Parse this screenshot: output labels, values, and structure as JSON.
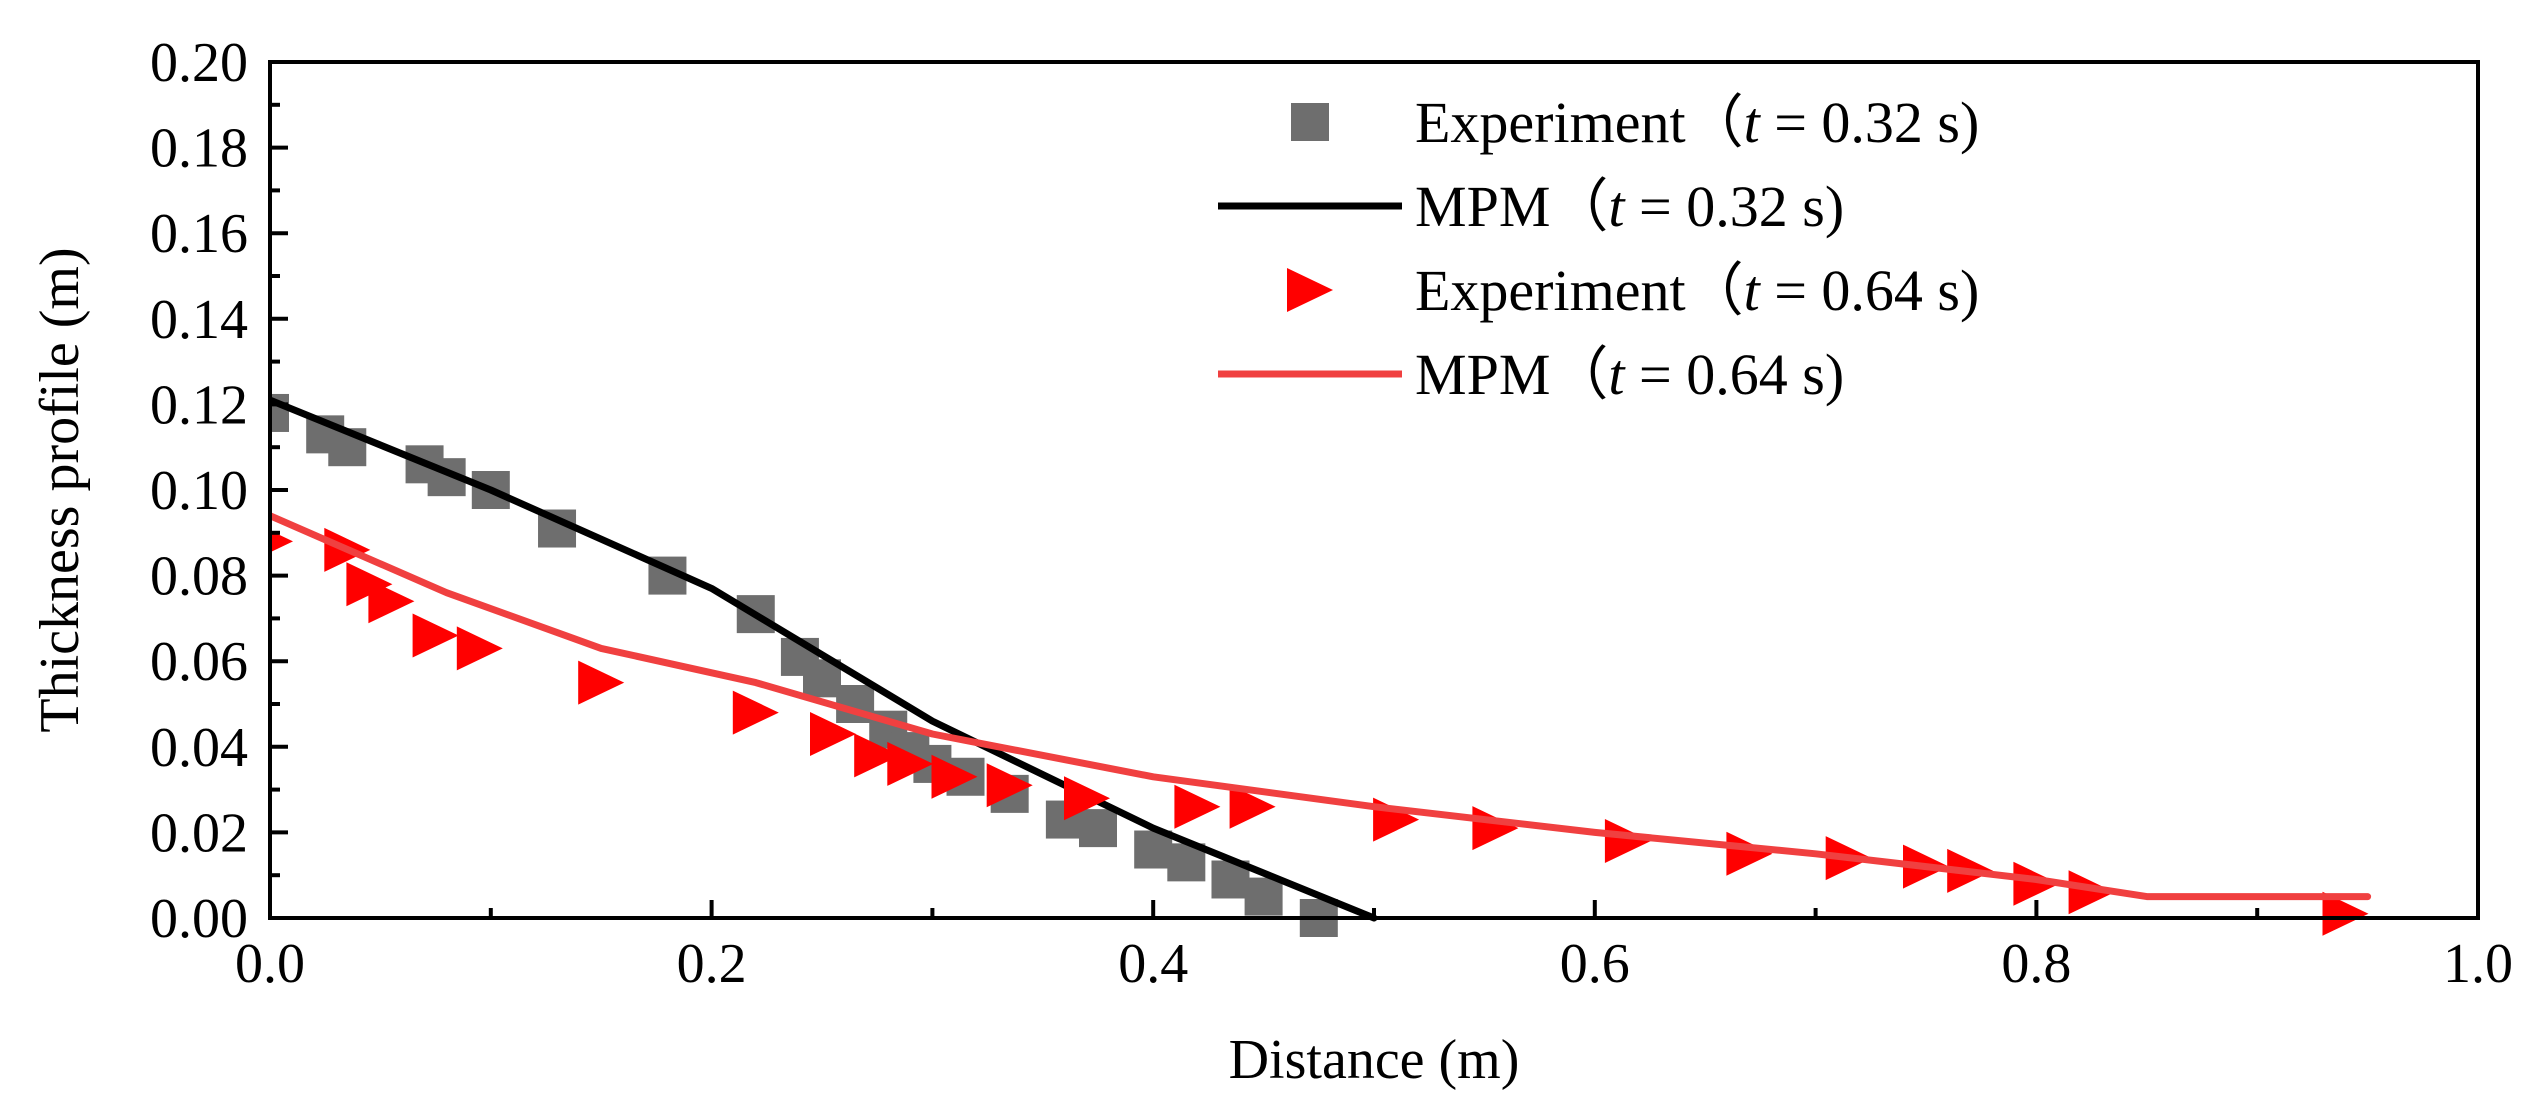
{
  "chart_data": {
    "type": "scatter",
    "xlabel": "Distance (m)",
    "ylabel": "Thickness profile (m)",
    "xlim": [
      0.0,
      1.0
    ],
    "ylim": [
      0.0,
      0.2
    ],
    "x_ticks": [
      0.0,
      0.2,
      0.4,
      0.6,
      0.8,
      1.0
    ],
    "y_ticks": [
      0.0,
      0.02,
      0.04,
      0.06,
      0.08,
      0.1,
      0.12,
      0.14,
      0.16,
      0.18,
      0.2
    ],
    "x_tick_labels": [
      "0.0",
      "0.2",
      "0.4",
      "0.6",
      "0.8",
      "1.0"
    ],
    "y_tick_labels": [
      "0.00",
      "0.02",
      "0.04",
      "0.06",
      "0.08",
      "0.10",
      "0.12",
      "0.14",
      "0.16",
      "0.18",
      "0.20"
    ],
    "grid": false,
    "legend_position": "top-right",
    "series": [
      {
        "name": "Experiment（t = 0.32 s)",
        "legend_prefix": "Experiment（",
        "legend_italic": "t",
        "legend_suffix": " = 0.32 s)",
        "kind": "markers",
        "marker": "square",
        "color": "#6e6e6e",
        "x": [
          0.0,
          0.025,
          0.035,
          0.07,
          0.08,
          0.1,
          0.13,
          0.18,
          0.22,
          0.24,
          0.25,
          0.265,
          0.28,
          0.29,
          0.3,
          0.315,
          0.335,
          0.36,
          0.375,
          0.4,
          0.415,
          0.435,
          0.45,
          0.475
        ],
        "y": [
          0.118,
          0.113,
          0.11,
          0.106,
          0.103,
          0.1,
          0.091,
          0.08,
          0.071,
          0.061,
          0.056,
          0.05,
          0.044,
          0.039,
          0.036,
          0.033,
          0.029,
          0.023,
          0.021,
          0.016,
          0.013,
          0.009,
          0.005,
          0.0
        ]
      },
      {
        "name": "MPM（t = 0.32 s)",
        "legend_prefix": "MPM（",
        "legend_italic": "t",
        "legend_suffix": " = 0.32 s)",
        "kind": "line",
        "color": "#000000",
        "x": [
          0.0,
          0.1,
          0.2,
          0.3,
          0.4,
          0.5
        ],
        "y": [
          0.121,
          0.1,
          0.077,
          0.046,
          0.021,
          0.0
        ]
      },
      {
        "name": "Experiment（t = 0.64 s)",
        "legend_prefix": "Experiment（",
        "legend_italic": "t",
        "legend_suffix": " = 0.64 s)",
        "kind": "markers",
        "marker": "triangle-right",
        "color": "#ff0000",
        "x": [
          0.0,
          0.035,
          0.045,
          0.055,
          0.075,
          0.095,
          0.15,
          0.22,
          0.255,
          0.275,
          0.29,
          0.31,
          0.335,
          0.37,
          0.42,
          0.445,
          0.51,
          0.555,
          0.615,
          0.67,
          0.715,
          0.75,
          0.77,
          0.8,
          0.825,
          0.94
        ],
        "y": [
          0.088,
          0.086,
          0.078,
          0.074,
          0.066,
          0.063,
          0.055,
          0.048,
          0.043,
          0.038,
          0.036,
          0.033,
          0.031,
          0.028,
          0.026,
          0.026,
          0.023,
          0.021,
          0.018,
          0.015,
          0.014,
          0.012,
          0.011,
          0.008,
          0.006,
          0.001
        ]
      },
      {
        "name": "MPM（t = 0.64 s)",
        "legend_prefix": "MPM（",
        "legend_italic": "t",
        "legend_suffix": " = 0.64 s)",
        "kind": "line",
        "color": "#f04040",
        "x": [
          0.0,
          0.08,
          0.15,
          0.22,
          0.3,
          0.4,
          0.5,
          0.6,
          0.7,
          0.8,
          0.85,
          0.95
        ],
        "y": [
          0.094,
          0.076,
          0.063,
          0.055,
          0.043,
          0.033,
          0.026,
          0.02,
          0.015,
          0.009,
          0.005,
          0.005
        ]
      }
    ]
  }
}
